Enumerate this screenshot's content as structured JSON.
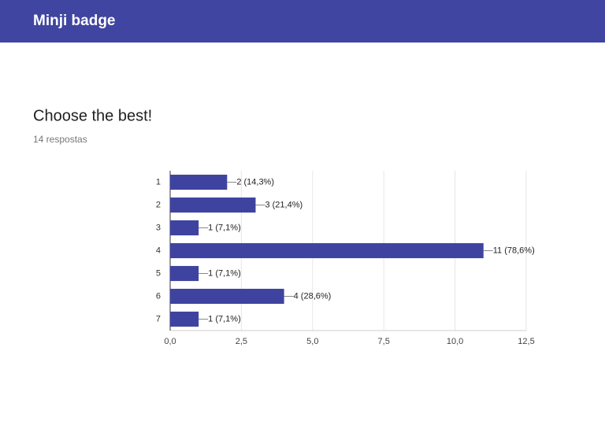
{
  "header": {
    "title": "Minji badge"
  },
  "chart_data": {
    "type": "bar",
    "orientation": "horizontal",
    "title": "Choose the best!",
    "subtitle": "14 respostas",
    "categories": [
      "1",
      "2",
      "3",
      "4",
      "5",
      "6",
      "7"
    ],
    "values": [
      2,
      3,
      1,
      11,
      1,
      4,
      1
    ],
    "value_labels": [
      "2 (14,3%)",
      "3 (21,4%)",
      "1 (7,1%)",
      "11 (78,6%)",
      "1 (7,1%)",
      "4 (28,6%)",
      "1 (7,1%)"
    ],
    "color": "#3f43a0",
    "xlim": [
      0,
      12.5
    ],
    "xticks": [
      {
        "value": 0,
        "label": "0,0"
      },
      {
        "value": 2.5,
        "label": "2,5"
      },
      {
        "value": 5,
        "label": "5,0"
      },
      {
        "value": 7.5,
        "label": "7,5"
      },
      {
        "value": 10,
        "label": "10,0"
      },
      {
        "value": 12.5,
        "label": "12,5"
      }
    ],
    "grid": true
  }
}
